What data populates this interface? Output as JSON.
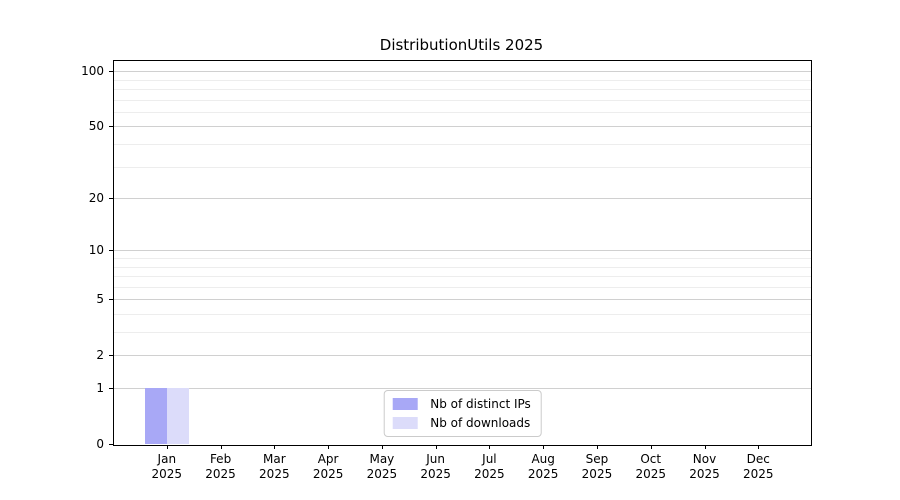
{
  "chart_data": {
    "type": "bar",
    "title": "DistributionUtils 2025",
    "categories": [
      [
        "Jan",
        "2025"
      ],
      [
        "Feb",
        "2025"
      ],
      [
        "Mar",
        "2025"
      ],
      [
        "Apr",
        "2025"
      ],
      [
        "May",
        "2025"
      ],
      [
        "Jun",
        "2025"
      ],
      [
        "Jul",
        "2025"
      ],
      [
        "Aug",
        "2025"
      ],
      [
        "Sep",
        "2025"
      ],
      [
        "Oct",
        "2025"
      ],
      [
        "Nov",
        "2025"
      ],
      [
        "Dec",
        "2025"
      ]
    ],
    "series": [
      {
        "name": "Nb of distinct IPs",
        "color": "#a8a8f6",
        "values": [
          1,
          0,
          0,
          0,
          0,
          0,
          0,
          0,
          0,
          0,
          0,
          0
        ]
      },
      {
        "name": "Nb of downloads",
        "color": "#dcdcfa",
        "values": [
          1,
          0,
          0,
          0,
          0,
          0,
          0,
          0,
          0,
          0,
          0,
          0
        ]
      }
    ],
    "yticks": [
      0,
      1,
      2,
      5,
      10,
      20,
      50,
      100
    ],
    "minor_yticks": [
      3,
      4,
      6,
      7,
      8,
      9,
      30,
      40,
      60,
      70,
      80,
      90
    ],
    "yscale": "log10(1+y)",
    "ylim": [
      0,
      115
    ],
    "xlabel": "",
    "ylabel": "",
    "grid": true,
    "legend_position": "lower center",
    "colors": {
      "major_grid": "#d0d0d0",
      "minor_grid": "#ededed",
      "axis": "#000000",
      "background": "#ffffff"
    }
  }
}
